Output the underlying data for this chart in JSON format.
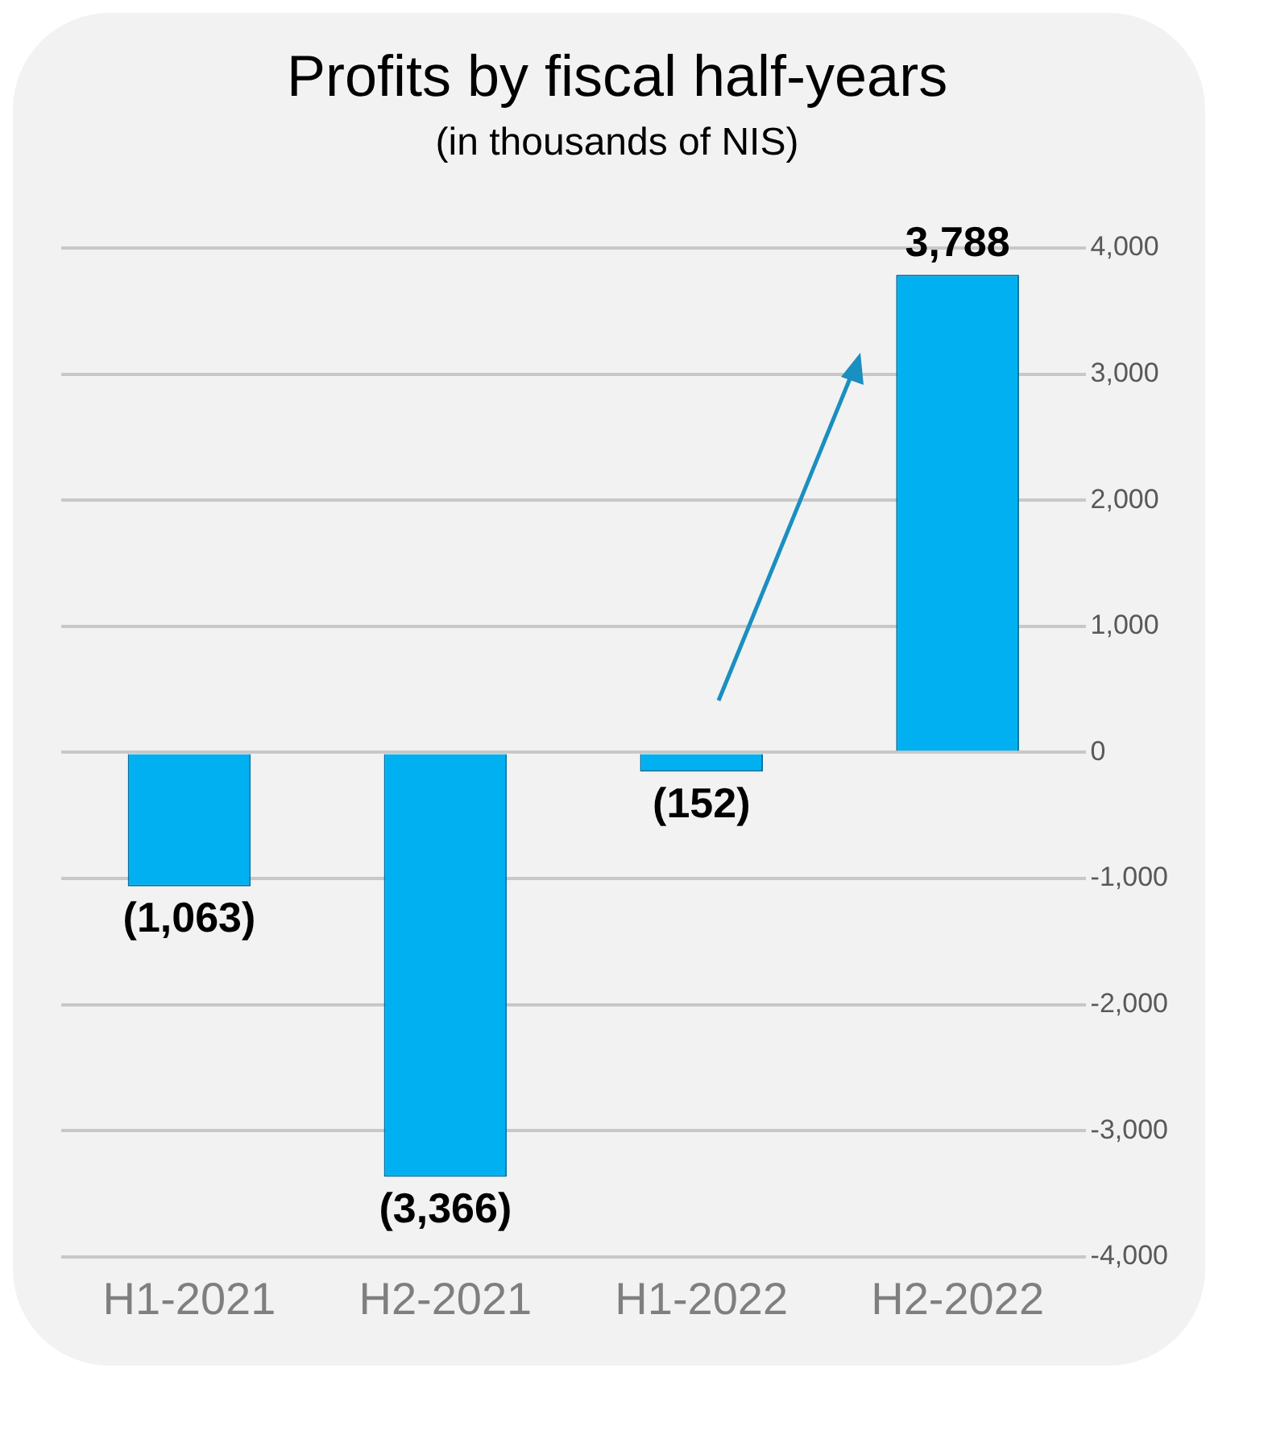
{
  "chart_data": {
    "type": "bar",
    "title": "Profits by fiscal half-years",
    "subtitle": "(in thousands of NIS)",
    "categories": [
      "H1-2021",
      "H2-2021",
      "H1-2022",
      "H2-2022"
    ],
    "values": [
      -1063,
      -3366,
      -152,
      3788
    ],
    "value_labels": [
      "(1,063)",
      "(3,366)",
      "(152)",
      "3,788"
    ],
    "color": "#00b0f0",
    "ylim": [
      -4000,
      4000
    ],
    "yticks": [
      {
        "value": -4000,
        "label": "-4,000"
      },
      {
        "value": -3000,
        "label": "-3,000"
      },
      {
        "value": -2000,
        "label": "-2,000"
      },
      {
        "value": -1000,
        "label": "-1,000"
      },
      0,
      {
        "value": 1000,
        "label": "1,000"
      },
      {
        "value": 2000,
        "label": "2,000"
      },
      {
        "value": 3000,
        "label": "3,000"
      },
      {
        "value": 4000,
        "label": "4,000"
      }
    ],
    "grid": "y",
    "legend": false
  }
}
